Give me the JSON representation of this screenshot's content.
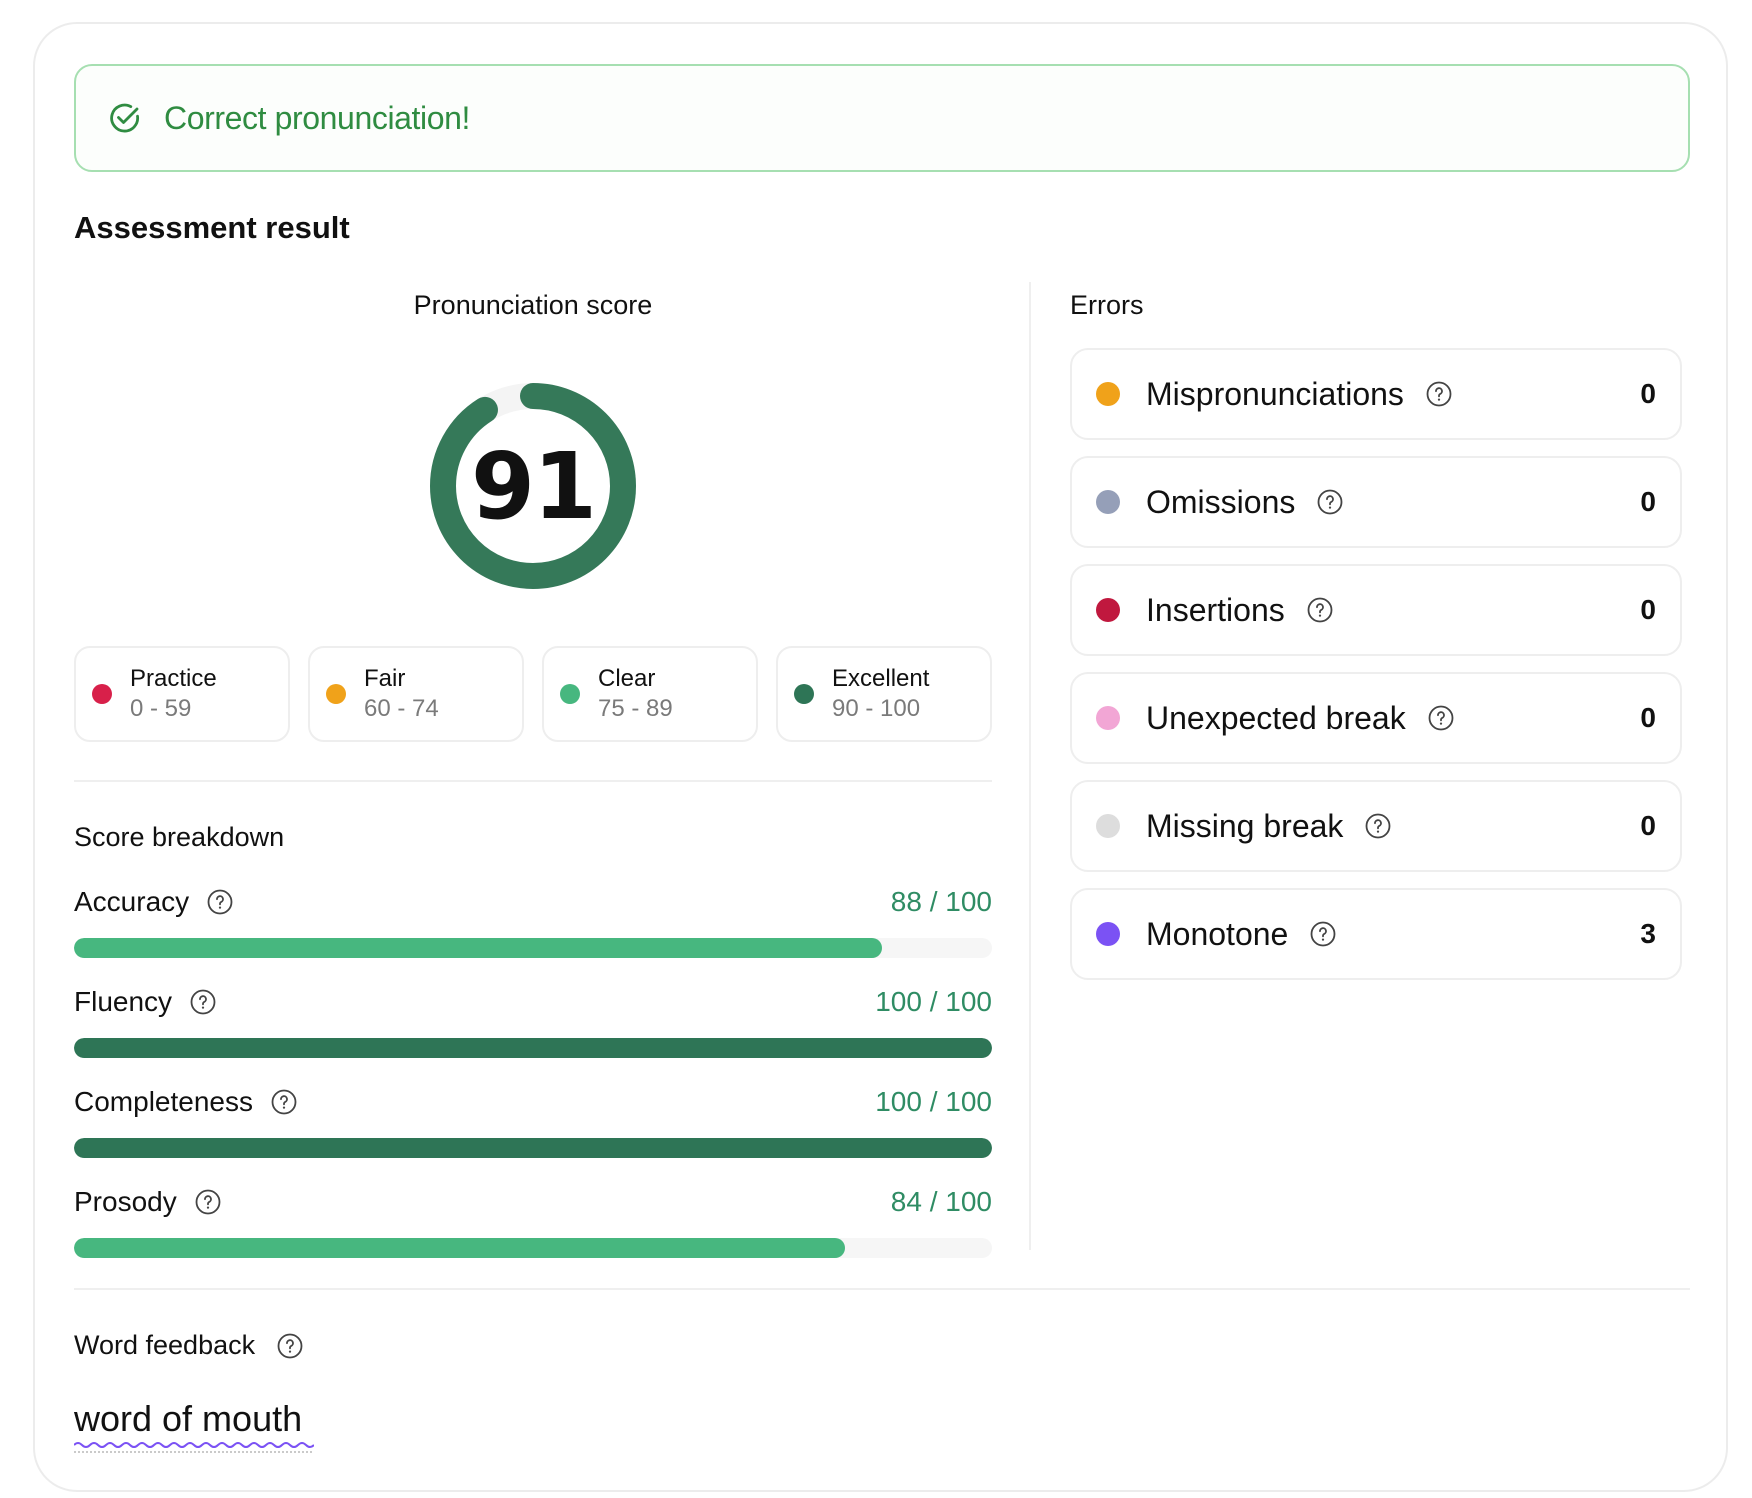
{
  "banner": {
    "message": "Correct pronunciation!",
    "icon": "check-circle-icon",
    "color": "#2f8c41"
  },
  "assessment": {
    "title": "Assessment result"
  },
  "pronunciation_score": {
    "title": "Pronunciation score",
    "value": "91",
    "percent": 91,
    "color": "#357959"
  },
  "legend": [
    {
      "label": "Practice",
      "range": "0 - 59",
      "color": "#d8204a"
    },
    {
      "label": "Fair",
      "range": "60 - 74",
      "color": "#f0a21a"
    },
    {
      "label": "Clear",
      "range": "75 - 89",
      "color": "#47b77f"
    },
    {
      "label": "Excellent",
      "range": "90 - 100",
      "color": "#2e7556"
    }
  ],
  "breakdown": {
    "title": "Score breakdown",
    "items": [
      {
        "name": "Accuracy",
        "value": "88 / 100",
        "percent": 88,
        "color": "#47b77f"
      },
      {
        "name": "Fluency",
        "value": "100 / 100",
        "percent": 100,
        "color": "#2e7556"
      },
      {
        "name": "Completeness",
        "value": "100 / 100",
        "percent": 100,
        "color": "#2e7556"
      },
      {
        "name": "Prosody",
        "value": "84 / 100",
        "percent": 84,
        "color": "#47b77f"
      }
    ]
  },
  "errors": {
    "title": "Errors",
    "items": [
      {
        "label": "Mispronunciations",
        "count": "0",
        "color": "#f0a21a"
      },
      {
        "label": "Omissions",
        "count": "0",
        "color": "#959fb8"
      },
      {
        "label": "Insertions",
        "count": "0",
        "color": "#c0183e"
      },
      {
        "label": "Unexpected break",
        "count": "0",
        "color": "#f2a6d5"
      },
      {
        "label": "Missing break",
        "count": "0",
        "color": "#dddddd"
      },
      {
        "label": "Monotone",
        "count": "3",
        "color": "#7b52f4"
      }
    ]
  },
  "word_feedback": {
    "title": "Word feedback",
    "text": "word of mouth",
    "underline_color": "#7b52f4"
  }
}
